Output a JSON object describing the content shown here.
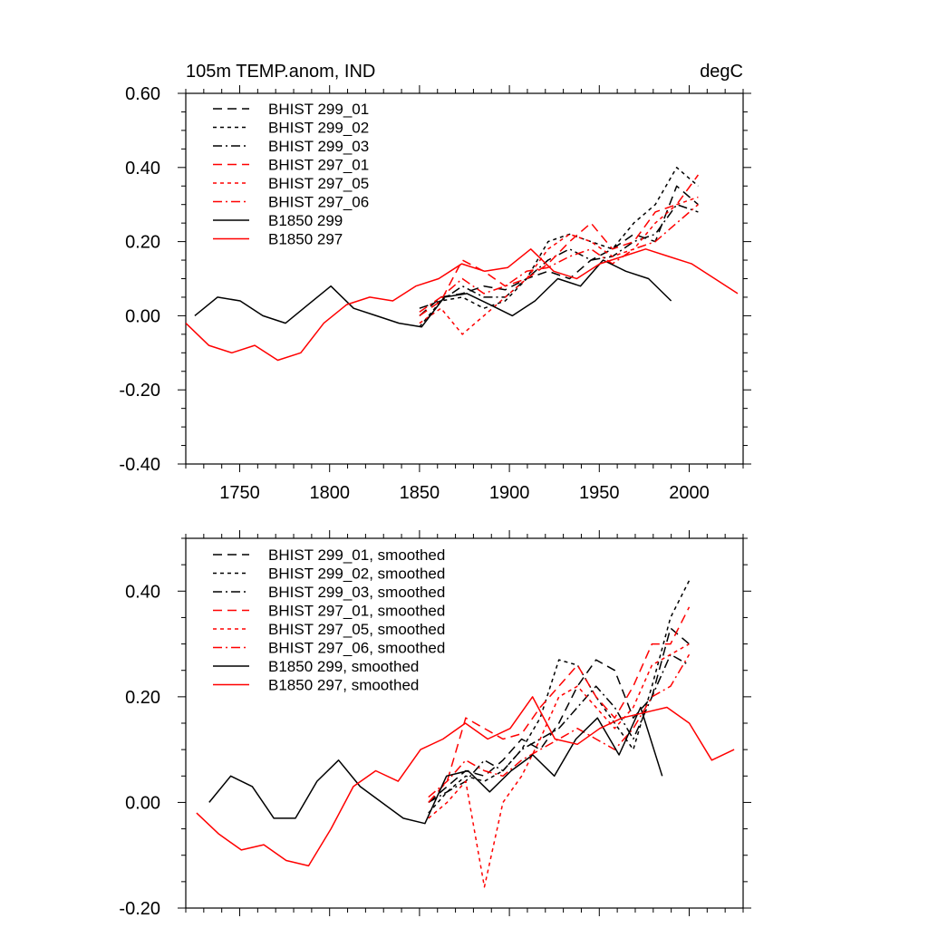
{
  "chart_data": [
    {
      "type": "line",
      "title_left": "105m TEMP.anom, IND",
      "title_right": "degC",
      "xlim": [
        1720,
        2030
      ],
      "ylim": [
        -0.4,
        0.6
      ],
      "x_ticks": [
        1750,
        1800,
        1850,
        1900,
        1950,
        2000
      ],
      "x_tick_labels": [
        "1750",
        "1800",
        "1850",
        "1900",
        "1950",
        "2000"
      ],
      "y_ticks": [
        -0.4,
        -0.2,
        0.0,
        0.2,
        0.4,
        0.6
      ],
      "y_tick_labels": [
        "-0.40",
        "-0.20",
        "0.00",
        "0.20",
        "0.40",
        "0.60"
      ],
      "legend_position": "top-left",
      "series": [
        {
          "name": "BHIST 299_01",
          "color": "#000000",
          "dash": "long-dash",
          "x_start": 1850,
          "x_end": 2005,
          "values": [
            0.0,
            0.05,
            0.06,
            0.08,
            0.07,
            0.1,
            0.12,
            0.1,
            0.15,
            0.18,
            0.22,
            0.2,
            0.35,
            0.3
          ]
        },
        {
          "name": "BHIST 299_02",
          "color": "#000000",
          "dash": "short-dash",
          "x_start": 1850,
          "x_end": 2005,
          "values": [
            -0.03,
            0.04,
            0.05,
            0.02,
            0.04,
            0.1,
            0.2,
            0.22,
            0.2,
            0.18,
            0.25,
            0.3,
            0.4,
            0.35
          ]
        },
        {
          "name": "BHIST 299_03",
          "color": "#000000",
          "dash": "dash-dot",
          "x_start": 1850,
          "x_end": 2005,
          "values": [
            0.02,
            0.04,
            0.08,
            0.05,
            0.05,
            0.1,
            0.15,
            0.18,
            0.15,
            0.16,
            0.2,
            0.22,
            0.3,
            0.28
          ]
        },
        {
          "name": "BHIST 297_01",
          "color": "#ff0000",
          "dash": "long-dash",
          "x_start": 1850,
          "x_end": 2005,
          "values": [
            0.0,
            0.04,
            0.15,
            0.12,
            0.08,
            0.1,
            0.14,
            0.2,
            0.25,
            0.18,
            0.2,
            0.28,
            0.3,
            0.38
          ]
        },
        {
          "name": "BHIST 297_05",
          "color": "#ff0000",
          "dash": "short-dash",
          "x_start": 1850,
          "x_end": 2005,
          "values": [
            -0.02,
            0.02,
            -0.05,
            0.0,
            0.05,
            0.1,
            0.18,
            0.22,
            0.2,
            0.16,
            0.18,
            0.25,
            0.3,
            0.32
          ]
        },
        {
          "name": "BHIST 297_06",
          "color": "#ff0000",
          "dash": "dash-dot",
          "x_start": 1850,
          "x_end": 2005,
          "values": [
            0.01,
            0.05,
            0.1,
            0.06,
            0.08,
            0.12,
            0.13,
            0.16,
            0.18,
            0.14,
            0.18,
            0.2,
            0.25,
            0.3
          ]
        },
        {
          "name": "B1850 299",
          "color": "#000000",
          "dash": "solid",
          "x_start": 1725,
          "x_end": 1990,
          "values": [
            0.0,
            0.05,
            0.04,
            0.0,
            -0.02,
            0.03,
            0.08,
            0.02,
            0.0,
            -0.02,
            -0.03,
            0.05,
            0.06,
            0.03,
            0.0,
            0.04,
            0.1,
            0.08,
            0.15,
            0.12,
            0.1,
            0.04
          ]
        },
        {
          "name": "B1850 297",
          "color": "#ff0000",
          "dash": "solid",
          "x_start": 1720,
          "x_end": 2027,
          "values": [
            -0.02,
            -0.08,
            -0.1,
            -0.08,
            -0.12,
            -0.1,
            -0.02,
            0.03,
            0.05,
            0.04,
            0.08,
            0.1,
            0.14,
            0.12,
            0.13,
            0.18,
            0.12,
            0.1,
            0.14,
            0.16,
            0.18,
            0.16,
            0.14,
            0.1,
            0.06
          ]
        }
      ]
    },
    {
      "type": "line",
      "xlim": [
        1720,
        2030
      ],
      "ylim": [
        -0.2,
        0.5
      ],
      "x_ticks": [
        1750,
        1800,
        1850,
        1900,
        1950,
        2000
      ],
      "y_ticks": [
        -0.2,
        0.0,
        0.2,
        0.4
      ],
      "y_tick_labels": [
        "-0.20",
        "0.00",
        "0.20",
        "0.40"
      ],
      "legend_position": "top-left",
      "series": [
        {
          "name": "BHIST 299_01, smoothed",
          "color": "#000000",
          "dash": "long-dash",
          "x_start": 1855,
          "x_end": 2000,
          "values": [
            0.0,
            0.03,
            0.06,
            0.05,
            0.08,
            0.12,
            0.1,
            0.15,
            0.22,
            0.27,
            0.25,
            0.16,
            0.2,
            0.33,
            0.3
          ]
        },
        {
          "name": "BHIST 299_02, smoothed",
          "color": "#000000",
          "dash": "short-dash",
          "x_start": 1855,
          "x_end": 2000,
          "values": [
            -0.02,
            0.02,
            0.05,
            0.04,
            0.06,
            0.1,
            0.16,
            0.27,
            0.26,
            0.2,
            0.15,
            0.1,
            0.22,
            0.35,
            0.42
          ]
        },
        {
          "name": "BHIST 299_03, smoothed",
          "color": "#000000",
          "dash": "dash-dot",
          "x_start": 1855,
          "x_end": 2000,
          "values": [
            0.0,
            0.02,
            0.04,
            0.08,
            0.06,
            0.1,
            0.12,
            0.14,
            0.18,
            0.22,
            0.18,
            0.12,
            0.2,
            0.28,
            0.26
          ]
        },
        {
          "name": "BHIST 297_01, smoothed",
          "color": "#ff0000",
          "dash": "long-dash",
          "x_start": 1855,
          "x_end": 2000,
          "values": [
            0.0,
            0.04,
            0.16,
            0.14,
            0.12,
            0.13,
            0.18,
            0.22,
            0.26,
            0.2,
            0.16,
            0.22,
            0.3,
            0.3,
            0.37
          ]
        },
        {
          "name": "BHIST 297_05, smoothed",
          "color": "#ff0000",
          "dash": "short-dash",
          "x_start": 1855,
          "x_end": 2000,
          "values": [
            -0.03,
            0.0,
            0.04,
            -0.16,
            0.0,
            0.05,
            0.12,
            0.2,
            0.22,
            0.18,
            0.14,
            0.18,
            0.26,
            0.28,
            0.3
          ]
        },
        {
          "name": "BHIST 297_06, smoothed",
          "color": "#ff0000",
          "dash": "dash-dot",
          "x_start": 1855,
          "x_end": 2000,
          "values": [
            0.01,
            0.04,
            0.08,
            0.06,
            0.05,
            0.08,
            0.1,
            0.12,
            0.14,
            0.12,
            0.1,
            0.14,
            0.2,
            0.22,
            0.28
          ]
        },
        {
          "name": "B1850 299, smoothed",
          "color": "#000000",
          "dash": "solid",
          "x_start": 1733,
          "x_end": 1985,
          "values": [
            0.0,
            0.05,
            0.03,
            -0.03,
            -0.03,
            0.04,
            0.08,
            0.03,
            0.0,
            -0.03,
            -0.04,
            0.05,
            0.06,
            0.02,
            0.06,
            0.09,
            0.05,
            0.12,
            0.16,
            0.09,
            0.18,
            0.05
          ]
        },
        {
          "name": "B1850 297, smoothed",
          "color": "#ff0000",
          "dash": "solid",
          "x_start": 1726,
          "x_end": 2025,
          "values": [
            -0.02,
            -0.06,
            -0.09,
            -0.08,
            -0.11,
            -0.12,
            -0.05,
            0.03,
            0.06,
            0.04,
            0.1,
            0.12,
            0.15,
            0.12,
            0.14,
            0.2,
            0.12,
            0.11,
            0.14,
            0.16,
            0.17,
            0.18,
            0.15,
            0.08,
            0.1
          ]
        }
      ]
    }
  ]
}
